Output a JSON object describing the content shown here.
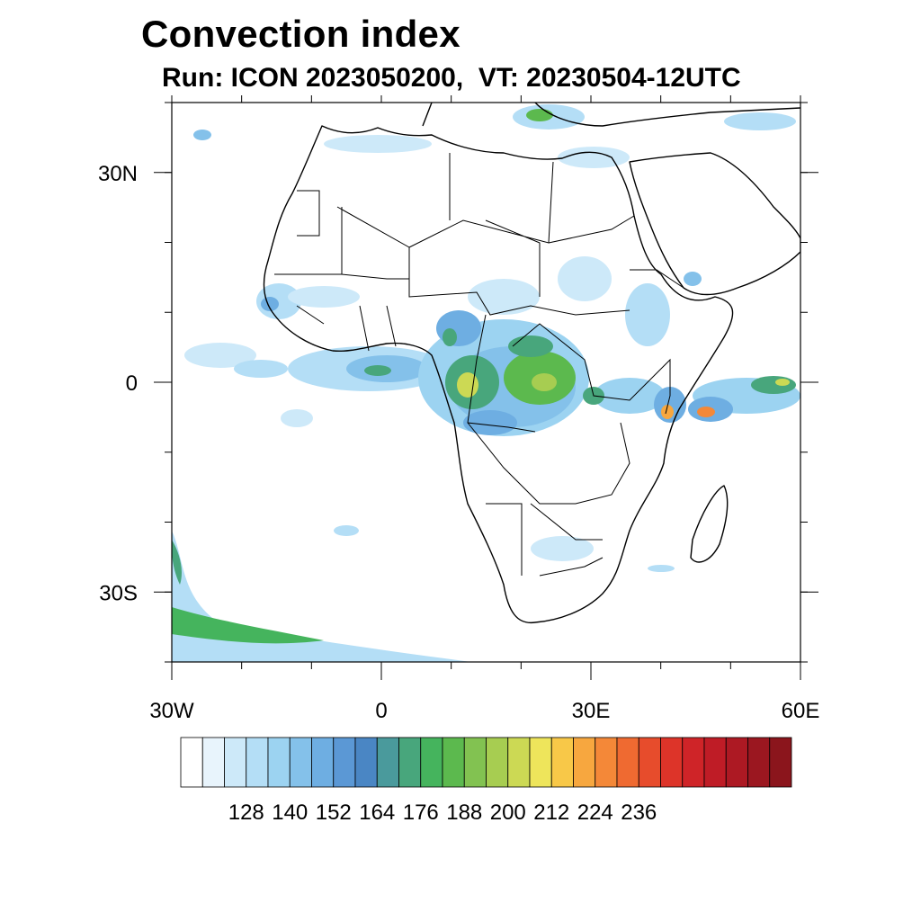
{
  "title": "Convection index",
  "subtitle": "Run: ICON 2023050200,  VT: 20230504-12UTC",
  "map": {
    "lon_range": [
      -30,
      60
    ],
    "lat_range": [
      -40,
      40
    ],
    "lat_ticks": [
      {
        "value": 30,
        "label": "30N"
      },
      {
        "value": 0,
        "label": "0"
      },
      {
        "value": -30,
        "label": "30S"
      }
    ],
    "lon_ticks": [
      {
        "value": -30,
        "label": "30W"
      },
      {
        "value": 0,
        "label": "0"
      },
      {
        "value": 30,
        "label": "30E"
      },
      {
        "value": 60,
        "label": "60E"
      }
    ],
    "land_color": "#ffffff",
    "border_color": "#000000"
  },
  "colorbar": {
    "labels": [
      "128",
      "140",
      "152",
      "164",
      "176",
      "188",
      "200",
      "212",
      "224",
      "236"
    ],
    "colors": [
      "#ffffff",
      "#e8f4fc",
      "#cde9f9",
      "#b4def6",
      "#9cd3f1",
      "#84c1ea",
      "#6eaee2",
      "#5b98d5",
      "#4a86c4",
      "#4a9a9c",
      "#48a67c",
      "#45b45d",
      "#5cb94e",
      "#82c251",
      "#a7cd51",
      "#ccd954",
      "#eee55b",
      "#f8c848",
      "#f7a73f",
      "#f48838",
      "#ef6a31",
      "#e74c2c",
      "#dd3429",
      "#cf2428",
      "#bf1c26",
      "#ad1923",
      "#9b1720",
      "#8b151c"
    ]
  }
}
